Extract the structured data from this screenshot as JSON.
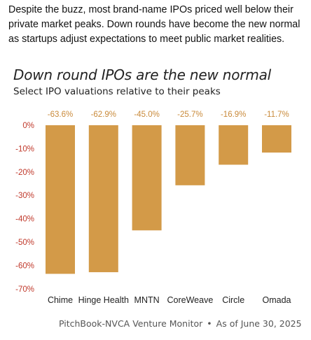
{
  "intro_text": "Despite the buzz, most brand-name IPOs priced well below their private market peaks. Down rounds have become the new normal as startups adjust expectations to meet public market realities.",
  "source": {
    "publisher": "PitchBook-NVCA Venture Monitor",
    "separator": "•",
    "date": "As of June 30, 2025"
  },
  "colors": {
    "bar": "#d39a48",
    "value_label": "#c98a3a",
    "axis_text": "#c0392b",
    "category_text": "#222222"
  },
  "chart_data": {
    "type": "bar",
    "title": "Down round IPOs are the new normal",
    "subtitle": "Select IPO valuations relative to their peaks",
    "categories": [
      "Chime",
      "Hinge Health",
      "MNTN",
      "CoreWeave",
      "Circle",
      "Omada"
    ],
    "values": [
      -63.6,
      -62.9,
      -45.0,
      -25.7,
      -16.9,
      -11.7
    ],
    "value_labels": [
      "-63.6%",
      "-62.9%",
      "-45.0%",
      "-25.7%",
      "-16.9%",
      "-11.7%"
    ],
    "yticks": [
      0,
      -10,
      -20,
      -30,
      -40,
      -50,
      -60,
      -70
    ],
    "ytick_labels": [
      "0%",
      "-10%",
      "-20%",
      "-30%",
      "-40%",
      "-50%",
      "-60%",
      "-70%"
    ],
    "ylim": [
      -70,
      0
    ],
    "grid": false,
    "legend": "none"
  }
}
